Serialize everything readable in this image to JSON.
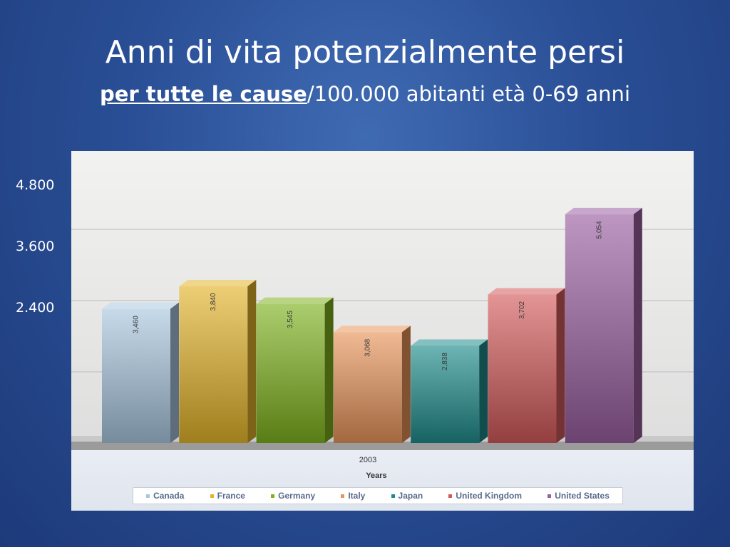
{
  "slide": {
    "title": "Anni di vita potenzialmente persi",
    "subtitle_emphasis": "per tutte le cause",
    "subtitle_rest": "/100.000 abitanti età 0-69 anni"
  },
  "colors": {
    "background": "#2a4f96",
    "Canada": "#a9c6df",
    "France": "#e3b42a",
    "Germany": "#7fb21e",
    "Italy": "#e8955a",
    "Japan": "#1f8c8c",
    "United Kingdom": "#d45a5a",
    "United States": "#9a5fa0"
  },
  "chart_data": {
    "type": "bar",
    "title": "",
    "categories": [
      "2003"
    ],
    "xlabel": "Years",
    "ylabel": "",
    "y_tick_labels": [
      "4.800",
      "3.600",
      "2.400"
    ],
    "grid": true,
    "legend_position": "bottom",
    "series": [
      {
        "name": "Canada",
        "values": [
          3460
        ],
        "label": "3,460"
      },
      {
        "name": "France",
        "values": [
          3840
        ],
        "label": "3,840"
      },
      {
        "name": "Germany",
        "values": [
          3545
        ],
        "label": "3,545"
      },
      {
        "name": "Italy",
        "values": [
          3068
        ],
        "label": "3,068"
      },
      {
        "name": "Japan",
        "values": [
          2838
        ],
        "label": "2,838"
      },
      {
        "name": "United Kingdom",
        "values": [
          3702
        ],
        "label": "3,702"
      },
      {
        "name": "United States",
        "values": [
          5054
        ],
        "label": "5,054"
      }
    ]
  }
}
